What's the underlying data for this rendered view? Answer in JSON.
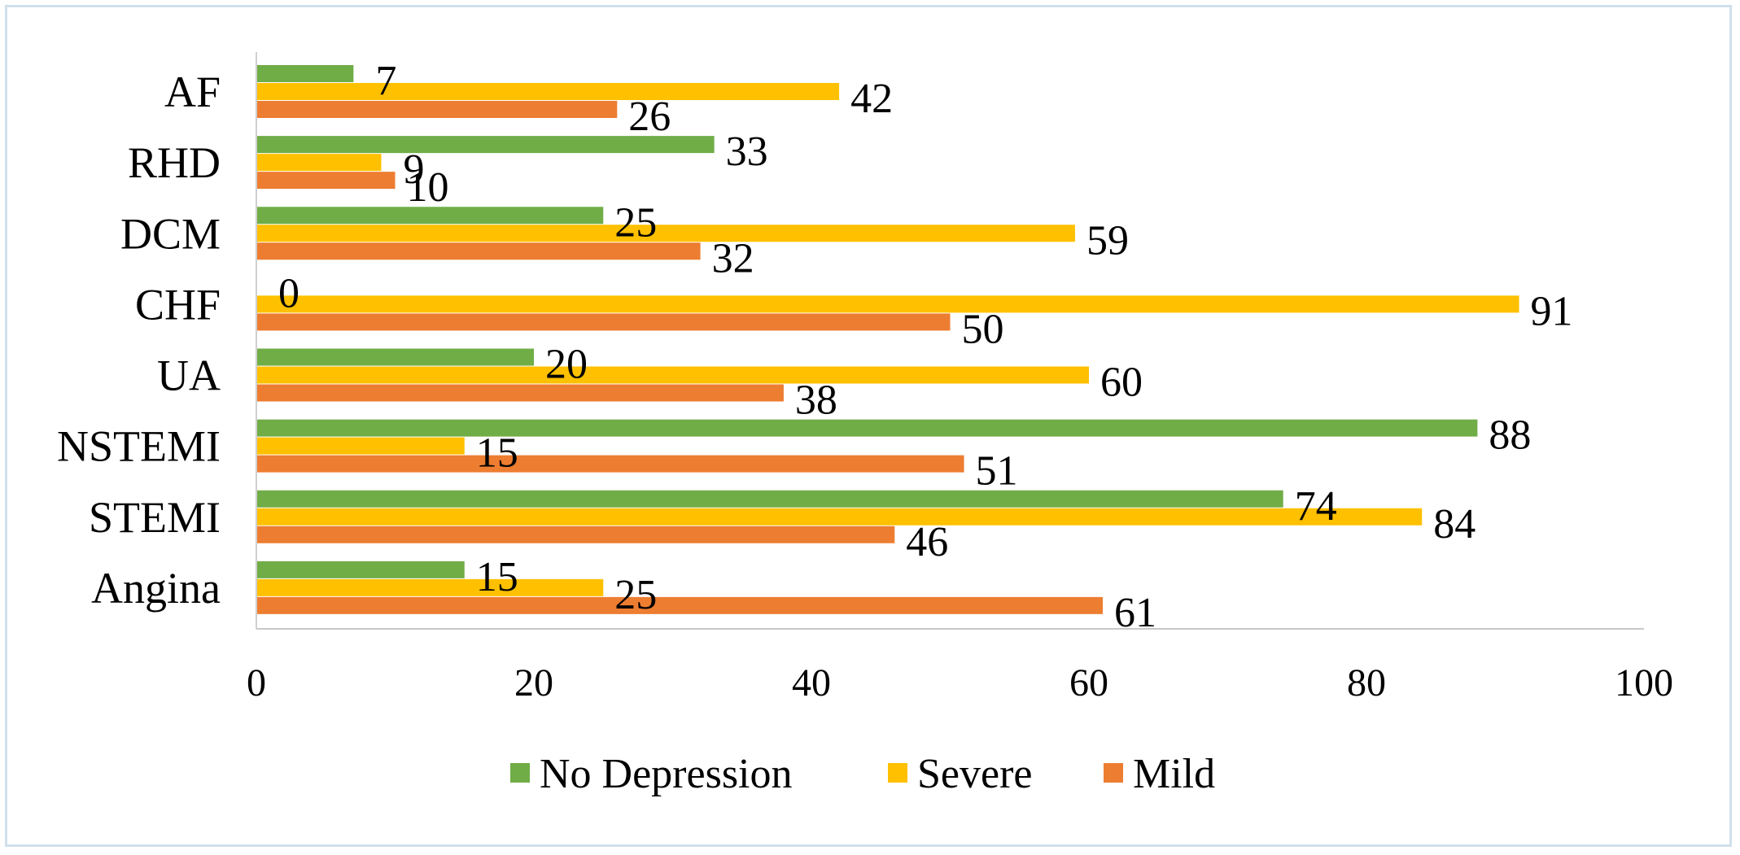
{
  "chart_data": {
    "type": "bar",
    "orientation": "horizontal",
    "categories": [
      "AF",
      "RHD",
      "DCM",
      "CHF",
      "UA",
      "NSTEMI",
      "STEMI",
      "Angina"
    ],
    "series": [
      {
        "name": "No Depression",
        "color": "#70ad47",
        "values": [
          7,
          33,
          25,
          0,
          20,
          88,
          74,
          15
        ]
      },
      {
        "name": "Severe",
        "color": "#ffc000",
        "values": [
          42,
          9,
          59,
          91,
          60,
          15,
          84,
          25
        ]
      },
      {
        "name": "Mild",
        "color": "#ed7d31",
        "values": [
          26,
          10,
          32,
          50,
          38,
          51,
          46,
          61
        ]
      }
    ],
    "xlim": [
      0,
      100
    ],
    "xticks": [
      "0",
      "20",
      "40",
      "60",
      "80",
      "100"
    ],
    "grid": false,
    "legend_position": "bottom",
    "title": "",
    "xlabel": "",
    "ylabel": ""
  }
}
